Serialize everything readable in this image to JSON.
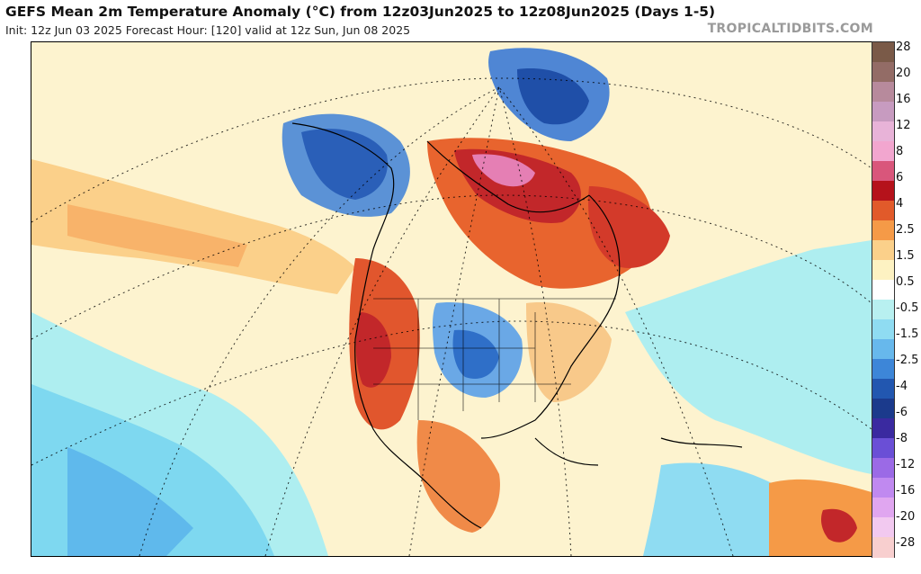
{
  "header": {
    "title": "GEFS Mean 2m Temperature Anomaly (°C) from 12z03Jun2025 to 12z08Jun2025 (Days 1-5)",
    "subtitle": "Init: 12z Jun 03 2025   Forecast Hour: [120]   valid at 12z Sun, Jun 08 2025",
    "brand": "TROPICALTIDBITS.COM"
  },
  "map": {
    "region": "North America",
    "projection": "polar stereographic",
    "field": "2m temperature anomaly",
    "units": "°C"
  },
  "colorbar": {
    "labels": [
      "28",
      "20",
      "16",
      "12",
      "8",
      "6",
      "4",
      "2.5",
      "1.5",
      "0.5",
      "-0.5",
      "-1.5",
      "-2.5",
      "-4",
      "-6",
      "-8",
      "-12",
      "-16",
      "-20",
      "-28"
    ],
    "colors": [
      "#7a5a48",
      "#936c66",
      "#b78a9c",
      "#c79bc0",
      "#e8b3d8",
      "#f2a6cf",
      "#d9567b",
      "#b5121b",
      "#e15a2a",
      "#f59a47",
      "#fbd08a",
      "#fdf2c2",
      "#ffffff",
      "#b8f0f0",
      "#8fdcf2",
      "#67b8ec",
      "#3d86d8",
      "#2257b0",
      "#1b3a8c",
      "#3a2aa0",
      "#6a4fd6",
      "#9b6ae6",
      "#c089f0",
      "#e0a6f0",
      "#f2c9f0",
      "#f8cfcf"
    ]
  }
}
